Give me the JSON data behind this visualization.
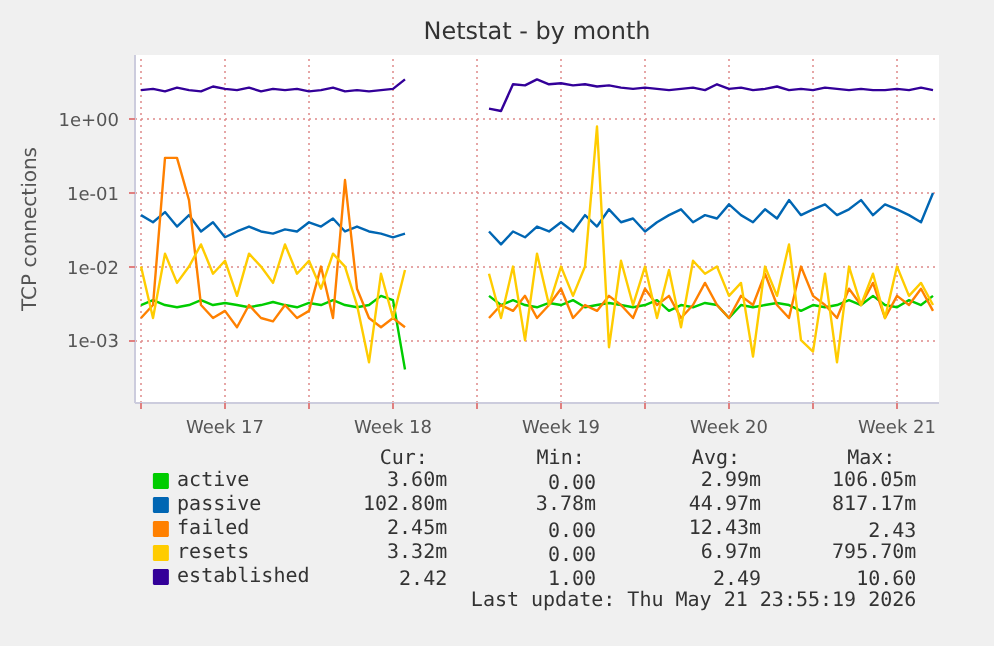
{
  "chart_data": {
    "type": "line",
    "title": "Netstat - by month",
    "ylabel": "TCP connections",
    "log": "y",
    "grid": true,
    "legend": "bottom",
    "line_style": "solid",
    "marker": "none",
    "x": [
      "2026-04-20T00:00",
      "2026-04-20T12:00",
      "2026-04-21T00:00",
      "2026-04-21T12:00",
      "2026-04-22T00:00",
      "2026-04-22T12:00",
      "2026-04-23T00:00",
      "2026-04-23T12:00",
      "2026-04-24T00:00",
      "2026-04-24T12:00",
      "2026-04-25T00:00",
      "2026-04-25T12:00",
      "2026-04-26T00:00",
      "2026-04-26T12:00",
      "2026-04-27T00:00",
      "2026-04-27T12:00",
      "2026-04-28T00:00",
      "2026-04-28T12:00",
      "2026-04-29T00:00",
      "2026-04-29T12:00",
      "2026-04-30T00:00",
      "2026-04-30T12:00",
      "2026-05-01T00:00",
      "2026-05-01T12:00",
      "2026-05-02T00:00",
      "2026-05-02T12:00",
      "2026-05-03T00:00",
      "2026-05-03T12:00",
      "2026-05-04T00:00",
      "2026-05-04T12:00",
      "2026-05-05T00:00",
      "2026-05-05T12:00",
      "2026-05-06T00:00",
      "2026-05-06T12:00",
      "2026-05-07T00:00",
      "2026-05-07T12:00",
      "2026-05-08T00:00",
      "2026-05-08T12:00",
      "2026-05-09T00:00",
      "2026-05-09T12:00",
      "2026-05-10T00:00",
      "2026-05-10T12:00",
      "2026-05-11T00:00",
      "2026-05-11T12:00",
      "2026-05-12T00:00",
      "2026-05-12T12:00",
      "2026-05-13T00:00",
      "2026-05-13T12:00",
      "2026-05-14T00:00",
      "2026-05-14T12:00",
      "2026-05-15T00:00",
      "2026-05-15T12:00",
      "2026-05-16T00:00",
      "2026-05-16T12:00",
      "2026-05-17T00:00",
      "2026-05-17T12:00",
      "2026-05-18T00:00",
      "2026-05-18T12:00",
      "2026-05-19T00:00",
      "2026-05-19T12:00",
      "2026-05-20T00:00",
      "2026-05-20T12:00",
      "2026-05-21T00:00",
      "2026-05-21T12:00",
      "2026-05-22T00:00",
      "2026-05-22T12:00",
      "2026-05-23T00:00"
    ],
    "xlim": [
      "2026-04-19T18:00",
      "2026-05-23T06:00"
    ],
    "xticks": [
      {
        "value": "2026-04-20T00:00",
        "label": null
      },
      {
        "value": "2026-04-23T12:00",
        "label": "Week 17"
      },
      {
        "value": "2026-04-27T00:00",
        "label": null
      },
      {
        "value": "2026-04-30T12:00",
        "label": "Week 18"
      },
      {
        "value": "2026-05-04T00:00",
        "label": null
      },
      {
        "value": "2026-05-07T12:00",
        "label": "Week 19"
      },
      {
        "value": "2026-05-11T00:00",
        "label": null
      },
      {
        "value": "2026-05-14T12:00",
        "label": "Week 20"
      },
      {
        "value": "2026-05-18T00:00",
        "label": null
      },
      {
        "value": "2026-05-21T12:00",
        "label": "Week 21"
      }
    ],
    "ylim": [
      0.00014,
      7.5
    ],
    "yticks": [
      {
        "value": 0.001,
        "label": "1e-03"
      },
      {
        "value": 0.01,
        "label": "1e-02"
      },
      {
        "value": 0.1,
        "label": "1e-01"
      },
      {
        "value": 1,
        "label": "1e+00"
      }
    ],
    "series": [
      {
        "name": "active",
        "color": "#00cc00",
        "values": [
          0.003,
          0.0035,
          0.003,
          0.0028,
          0.003,
          0.0035,
          0.003,
          0.0032,
          0.003,
          0.0028,
          0.003,
          0.0033,
          0.003,
          0.0028,
          0.0032,
          0.003,
          0.0035,
          0.003,
          0.0028,
          0.003,
          0.004,
          0.0035,
          0.0004,
          null,
          null,
          null,
          null,
          null,
          null,
          0.004,
          0.003,
          0.0035,
          0.003,
          0.0028,
          0.0032,
          0.003,
          0.0035,
          0.0028,
          0.003,
          0.0032,
          0.003,
          0.0028,
          0.003,
          0.0035,
          0.0025,
          0.003,
          0.0028,
          0.0032,
          0.003,
          0.002,
          0.003,
          0.0028,
          0.003,
          0.0032,
          0.003,
          0.0025,
          0.003,
          0.0028,
          0.003,
          0.0035,
          0.003,
          0.004,
          0.003,
          0.0028,
          0.0035,
          0.003,
          0.004
        ]
      },
      {
        "name": "passive",
        "color": "#0066b3",
        "values": [
          0.05,
          0.04,
          0.055,
          0.035,
          0.05,
          0.03,
          0.04,
          0.025,
          0.03,
          0.035,
          0.03,
          0.028,
          0.032,
          0.03,
          0.04,
          0.035,
          0.045,
          0.03,
          0.035,
          0.03,
          0.028,
          0.025,
          0.028,
          null,
          null,
          null,
          null,
          null,
          null,
          0.03,
          0.02,
          0.03,
          0.025,
          0.035,
          0.03,
          0.04,
          0.03,
          0.05,
          0.035,
          0.06,
          0.04,
          0.045,
          0.03,
          0.04,
          0.05,
          0.06,
          0.04,
          0.05,
          0.045,
          0.07,
          0.05,
          0.04,
          0.06,
          0.045,
          0.08,
          0.05,
          0.06,
          0.07,
          0.05,
          0.06,
          0.08,
          0.05,
          0.07,
          0.06,
          0.05,
          0.04,
          0.1
        ]
      },
      {
        "name": "failed",
        "color": "#ff8000",
        "values": [
          0.002,
          0.003,
          0.3,
          0.3,
          0.08,
          0.003,
          0.002,
          0.0025,
          0.0015,
          0.003,
          0.002,
          0.0018,
          0.003,
          0.002,
          0.0025,
          0.01,
          0.002,
          0.15,
          0.005,
          0.002,
          0.0015,
          0.002,
          0.0015,
          null,
          null,
          null,
          null,
          null,
          null,
          0.002,
          0.003,
          0.0025,
          0.004,
          0.002,
          0.003,
          0.005,
          0.002,
          0.003,
          0.0025,
          0.004,
          0.003,
          0.002,
          0.005,
          0.003,
          0.004,
          0.002,
          0.003,
          0.006,
          0.003,
          0.002,
          0.004,
          0.003,
          0.008,
          0.003,
          0.002,
          0.01,
          0.004,
          0.003,
          0.002,
          0.005,
          0.003,
          0.006,
          0.002,
          0.004,
          0.003,
          0.005,
          0.0025
        ]
      },
      {
        "name": "resets",
        "color": "#ffcc00",
        "values": [
          0.01,
          0.002,
          0.015,
          0.006,
          0.01,
          0.02,
          0.008,
          0.012,
          0.004,
          0.015,
          0.01,
          0.006,
          0.02,
          0.008,
          0.012,
          0.005,
          0.015,
          0.01,
          0.003,
          0.0005,
          0.008,
          0.002,
          0.009,
          null,
          null,
          null,
          null,
          null,
          null,
          0.008,
          0.002,
          0.01,
          0.001,
          0.015,
          0.003,
          0.01,
          0.004,
          0.01,
          0.8,
          0.0008,
          0.012,
          0.003,
          0.01,
          0.002,
          0.009,
          0.0015,
          0.012,
          0.008,
          0.01,
          0.004,
          0.006,
          0.0006,
          0.01,
          0.004,
          0.02,
          0.001,
          0.0007,
          0.008,
          0.0005,
          0.01,
          0.003,
          0.008,
          0.002,
          0.01,
          0.004,
          0.006,
          0.003
        ]
      },
      {
        "name": "established",
        "color": "#330099",
        "values": [
          2.5,
          2.6,
          2.4,
          2.7,
          2.5,
          2.4,
          2.8,
          2.6,
          2.5,
          2.7,
          2.4,
          2.6,
          2.5,
          2.6,
          2.4,
          2.5,
          2.7,
          2.4,
          2.5,
          2.4,
          2.5,
          2.6,
          3.5,
          null,
          null,
          null,
          null,
          null,
          null,
          1.4,
          1.3,
          3.0,
          2.9,
          3.5,
          3.0,
          3.1,
          2.9,
          3.0,
          2.8,
          2.9,
          2.7,
          2.6,
          2.7,
          2.6,
          2.5,
          2.6,
          2.7,
          2.5,
          3.0,
          2.6,
          2.7,
          2.5,
          2.6,
          2.8,
          2.5,
          2.6,
          2.5,
          2.7,
          2.6,
          2.5,
          2.6,
          2.5,
          2.5,
          2.6,
          2.5,
          2.7,
          2.5
        ]
      }
    ],
    "annotations": [
      "Cur:",
      "Min:",
      "Avg:",
      "Max:",
      "3.60m",
      "0.00",
      "2.99m",
      "106.05m",
      "102.80m",
      "3.78m",
      "44.97m",
      "817.17m",
      "2.45m",
      "0.00",
      "12.43m",
      "2.43",
      "3.32m",
      "0.00",
      "6.97m",
      "795.70m",
      "2.42",
      "1.00",
      "2.49",
      "10.60",
      "Last update: Thu May 21 23:55:19 2026"
    ]
  }
}
